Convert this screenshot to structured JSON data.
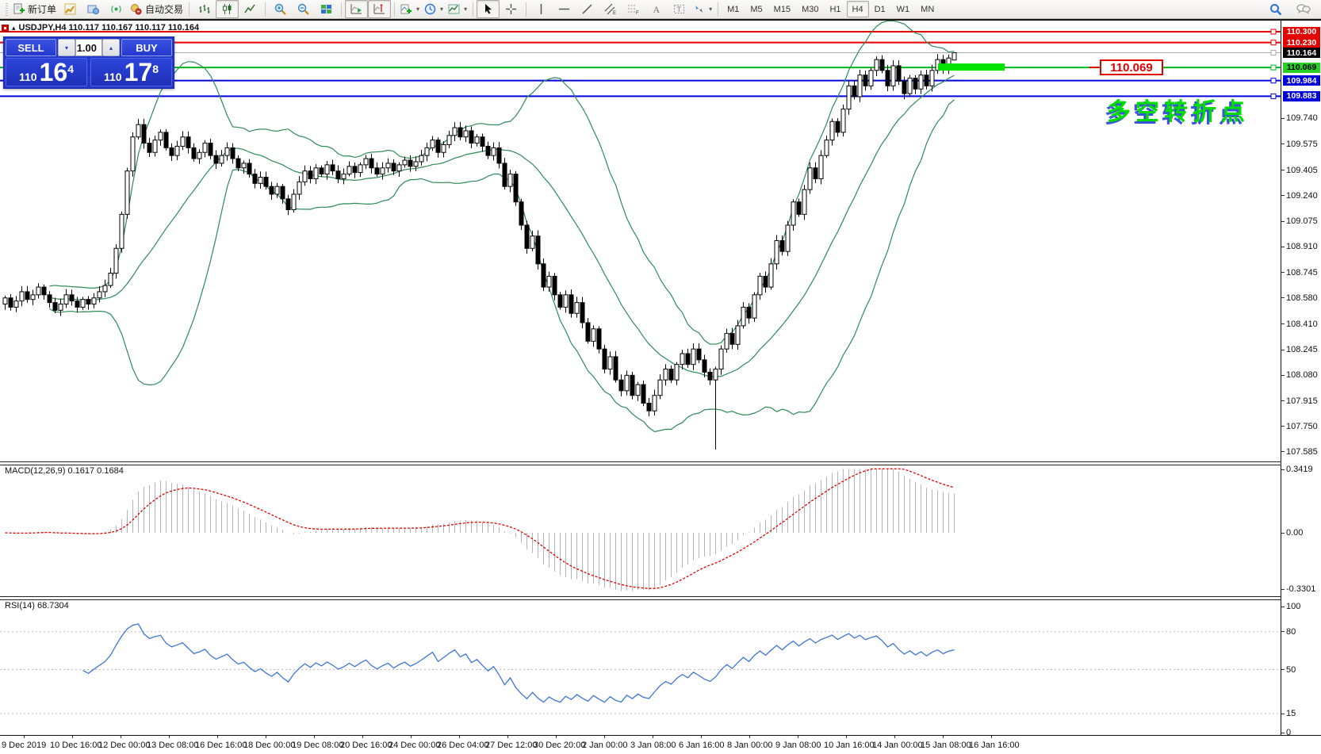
{
  "toolbar": {
    "new_order_label": "新订单",
    "autotrade_label": "自动交易",
    "timeframes": [
      "M1",
      "M5",
      "M15",
      "M30",
      "H1",
      "H4",
      "D1",
      "W1",
      "MN"
    ],
    "active_timeframe": "H4"
  },
  "order_panel": {
    "sell_label": "SELL",
    "buy_label": "BUY",
    "volume": "1.00",
    "sell_small": "110",
    "sell_big": "16",
    "sell_sup": "4",
    "buy_small": "110",
    "buy_big": "17",
    "buy_sup": "8"
  },
  "chart": {
    "title": "USDJPY,H4 110.117 110.167 110.117 110.164",
    "symbol": "USDJPY",
    "period": "H4",
    "levels": [
      {
        "price": 110.3,
        "color": "#e40000",
        "width": 2,
        "label": "110.300",
        "label_bg": "#e40000",
        "label_fg": "#ffffff"
      },
      {
        "price": 110.23,
        "color": "#e40000",
        "width": 2,
        "label": "110.230",
        "label_bg": "#e40000",
        "label_fg": "#ffffff"
      },
      {
        "price": 110.164,
        "color": "#a8a8a8",
        "width": 1,
        "label": "110.164",
        "label_bg": "#000000",
        "label_fg": "#ffffff"
      },
      {
        "price": 110.069,
        "color": "#00b91e",
        "width": 2,
        "label": "110.069",
        "label_bg": "#27cf27",
        "label_fg": "#000000"
      },
      {
        "price": 109.984,
        "color": "#0000dc",
        "width": 2,
        "label": "109.984",
        "label_bg": "#0000dc",
        "label_fg": "#ffffff"
      },
      {
        "price": 109.883,
        "color": "#0000dc",
        "width": 2,
        "label": "109.883",
        "label_bg": "#0000dc",
        "label_fg": "#ffffff"
      }
    ],
    "axis_ticks": [
      "109.740",
      "109.575",
      "109.405",
      "109.240",
      "109.075",
      "108.910",
      "108.745",
      "108.580",
      "108.410",
      "108.245",
      "108.080",
      "107.915",
      "107.750",
      "107.585"
    ],
    "candles": {
      "closes": [
        108.58,
        108.52,
        108.56,
        108.62,
        108.57,
        108.6,
        108.65,
        108.6,
        108.55,
        108.5,
        108.54,
        108.6,
        108.56,
        108.52,
        108.57,
        108.54,
        108.58,
        108.62,
        108.66,
        108.74,
        108.9,
        109.12,
        109.4,
        109.62,
        109.7,
        109.58,
        109.52,
        109.6,
        109.65,
        109.55,
        109.5,
        109.56,
        109.62,
        109.55,
        109.48,
        109.52,
        109.58,
        109.5,
        109.45,
        109.5,
        109.55,
        109.48,
        109.42,
        109.45,
        109.38,
        109.32,
        109.36,
        109.3,
        109.25,
        109.3,
        109.22,
        109.15,
        109.25,
        109.33,
        109.4,
        109.35,
        109.42,
        109.38,
        109.44,
        109.4,
        109.35,
        109.38,
        109.43,
        109.39,
        109.44,
        109.48,
        109.42,
        109.38,
        109.42,
        109.45,
        109.4,
        109.44,
        109.47,
        109.43,
        109.46,
        109.5,
        109.55,
        109.6,
        109.52,
        109.57,
        109.63,
        109.68,
        109.62,
        109.66,
        109.58,
        109.62,
        109.56,
        109.5,
        109.55,
        109.45,
        109.3,
        109.38,
        109.2,
        109.05,
        108.9,
        108.98,
        108.8,
        108.65,
        108.72,
        108.6,
        108.52,
        108.6,
        108.48,
        108.55,
        108.42,
        108.3,
        108.38,
        108.25,
        108.12,
        108.2,
        108.05,
        107.98,
        108.08,
        107.95,
        108.02,
        107.9,
        107.85,
        107.95,
        108.05,
        108.12,
        108.05,
        108.15,
        108.22,
        108.15,
        108.25,
        108.18,
        108.1,
        108.05,
        108.12,
        108.25,
        108.35,
        108.28,
        108.4,
        108.52,
        108.45,
        108.6,
        108.72,
        108.65,
        108.8,
        108.95,
        108.88,
        109.05,
        109.2,
        109.12,
        109.28,
        109.42,
        109.35,
        109.5,
        109.6,
        109.72,
        109.65,
        109.8,
        109.95,
        109.88,
        110.02,
        109.95,
        110.05,
        110.12,
        110.05,
        109.95,
        110.08,
        109.98,
        109.9,
        110.0,
        109.93,
        110.02,
        109.95,
        110.05,
        110.12,
        110.06,
        110.13,
        110.164
      ],
      "overrides": {
        "128": {
          "l": 107.6
        },
        "171": {
          "o": 110.117,
          "h": 110.167,
          "l": 110.117,
          "c": 110.164
        }
      }
    },
    "bollinger": {
      "period": 20,
      "deviation": 2,
      "color": "#2e8b57"
    }
  },
  "annotations": {
    "price_callout": "110.069",
    "cn_note": "多空转折点",
    "highlight_color": "#00e400"
  },
  "macd": {
    "label": "MACD(12,26,9) 0.1617 0.1684",
    "axis_max": "0.3419",
    "axis_zero": "0.00",
    "axis_min": "-0.3301",
    "fast": 12,
    "slow": 26,
    "signal": 9,
    "hist_color": "#b4b4b4",
    "signal_color": "#e00000"
  },
  "rsi": {
    "label": "RSI(14) 68.7304",
    "period": 14,
    "axis": [
      "100",
      "80",
      "50",
      "15",
      "0"
    ],
    "levels": [
      80,
      50,
      15
    ],
    "line_color": "#3e76d5"
  },
  "time_axis": [
    "9 Dec 2019",
    "10 Dec 16:00",
    "12 Dec 00:00",
    "13 Dec 08:00",
    "16 Dec 16:00",
    "18 Dec 00:00",
    "19 Dec 08:00",
    "20 Dec 16:00",
    "24 Dec 00:00",
    "26 Dec 04:00",
    "27 Dec 12:00",
    "30 Dec 20:00",
    "2 Jan 00:00",
    "3 Jan 08:00",
    "6 Jan 16:00",
    "8 Jan 00:00",
    "9 Jan 08:00",
    "10 Jan 16:00",
    "14 Jan 00:00",
    "15 Jan 08:00",
    "16 Jan 16:00"
  ]
}
